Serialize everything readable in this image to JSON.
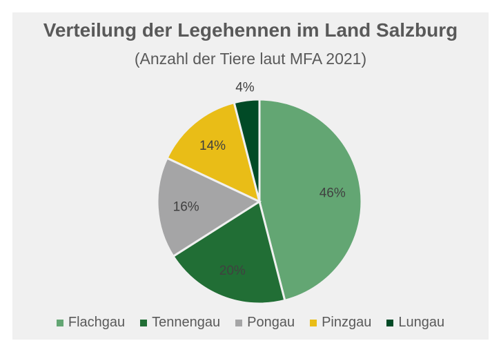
{
  "chart_data": {
    "type": "pie",
    "title": "Verteilung der Legehennen im Land Salzburg",
    "subtitle": "(Anzahl der Tiere laut MFA 2021)",
    "categories": [
      "Flachgau",
      "Tennengau",
      "Pongau",
      "Pinzgau",
      "Lungau"
    ],
    "values": [
      46,
      20,
      16,
      14,
      4
    ],
    "labels": [
      "46%",
      "20%",
      "16%",
      "14%",
      "4%"
    ],
    "colors": [
      "#63a673",
      "#216e35",
      "#a5a5a6",
      "#e9bd17",
      "#014a26"
    ],
    "legend_position": "bottom"
  }
}
